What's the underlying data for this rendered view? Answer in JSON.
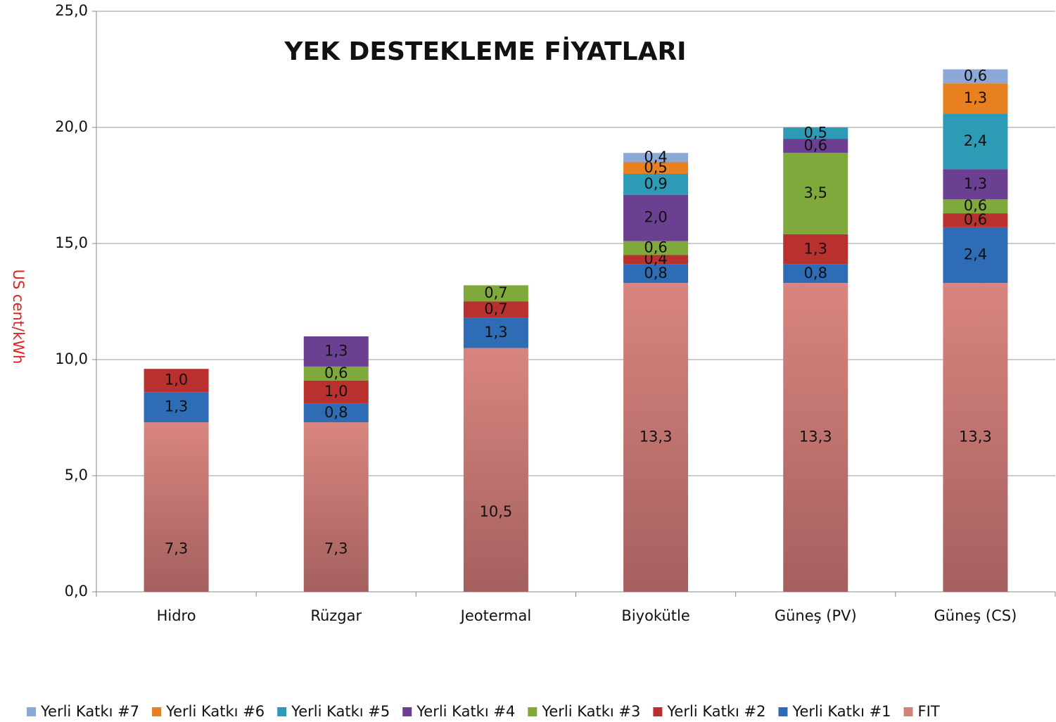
{
  "chart_data": {
    "type": "stacked_bar",
    "title": "YEK DESTEKLEME FİYATLARI",
    "y_label": "US cent/kWh",
    "categories": [
      "Hidro",
      "Rüzgar",
      "Jeotermal",
      "Biyokütle",
      "Güneş (PV)",
      "Güneş (CS)"
    ],
    "series": [
      {
        "name": "FIT",
        "color": "#d4817c",
        "values": [
          7.3,
          7.3,
          10.5,
          13.3,
          13.3,
          13.3
        ],
        "value_labels": [
          "7,3",
          "7,3",
          "10,5",
          "13,3",
          "13,3",
          "13,3"
        ]
      },
      {
        "name": "Yerli Katkı #1",
        "color": "#2e6db5",
        "values": [
          1.3,
          0.8,
          1.3,
          0.8,
          0.8,
          2.4
        ],
        "value_labels": [
          "1,3",
          "0,8",
          "1,3",
          "0,8",
          "0,8",
          "2,4"
        ]
      },
      {
        "name": "Yerli Katkı #2",
        "color": "#b8312f",
        "values": [
          1.0,
          1.0,
          0.7,
          0.4,
          1.3,
          0.6
        ],
        "value_labels": [
          "1,0",
          "1,0",
          "0,7",
          "0,4",
          "1,3",
          "0,6"
        ]
      },
      {
        "name": "Yerli Katkı #3",
        "color": "#80a93c",
        "values": [
          null,
          0.6,
          0.7,
          0.6,
          3.5,
          0.6
        ],
        "value_labels": [
          null,
          "0,6",
          "0,7",
          "0,6",
          "3,5",
          "0,6"
        ]
      },
      {
        "name": "Yerli Katkı #4",
        "color": "#6b3f92",
        "values": [
          null,
          1.3,
          null,
          2.0,
          0.6,
          1.3
        ],
        "value_labels": [
          null,
          "1,3",
          null,
          "2,0",
          "0,6",
          "1,3"
        ]
      },
      {
        "name": "Yerli Katkı #5",
        "color": "#2e9bb6",
        "values": [
          null,
          null,
          null,
          0.9,
          0.5,
          2.4
        ],
        "value_labels": [
          null,
          null,
          null,
          "0,9",
          "0,5",
          "2,4"
        ]
      },
      {
        "name": "Yerli Katkı #6",
        "color": "#e8801f",
        "values": [
          null,
          null,
          null,
          0.5,
          null,
          1.3
        ],
        "value_labels": [
          null,
          null,
          null,
          "0,5",
          null,
          "1,3"
        ]
      },
      {
        "name": "Yerli Katkı #7",
        "color": "#8ba8d6",
        "values": [
          null,
          null,
          null,
          0.4,
          null,
          0.6
        ],
        "value_labels": [
          null,
          null,
          null,
          "0,4",
          null,
          "0,6"
        ]
      }
    ],
    "ylim": [
      0,
      25
    ],
    "yticks": [
      {
        "value": 0,
        "label": "0,0"
      },
      {
        "value": 5,
        "label": "5,0"
      },
      {
        "value": 10,
        "label": "10,0"
      },
      {
        "value": 15,
        "label": "15,0"
      },
      {
        "value": 20,
        "label": "20,0"
      },
      {
        "value": 25,
        "label": "25,0"
      }
    ],
    "grid": true
  }
}
